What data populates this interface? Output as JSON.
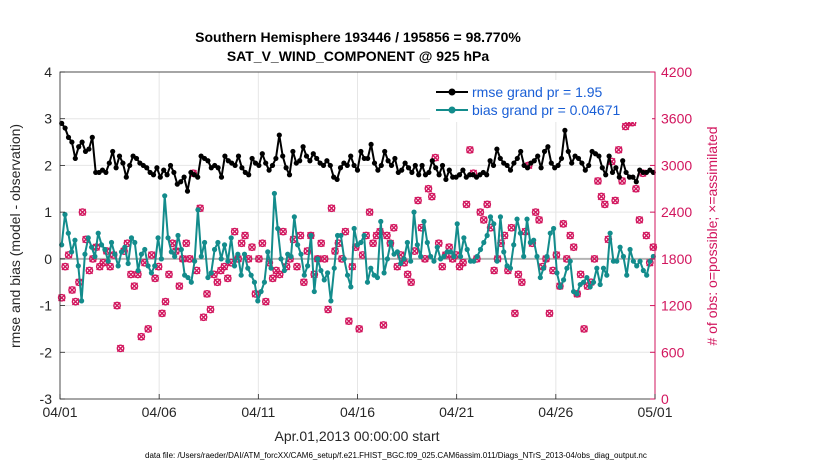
{
  "chart_data": {
    "type": "line",
    "title_line1": "Southern Hemisphere 193446 / 195856 = 98.770%",
    "title_line2": "SAT_V_WIND_COMPONENT @ 925 hPa",
    "ylabel": "rmse and bias (model - observation)",
    "ylabel_right": "# of obs: o=possible; ×=assimilated",
    "xlabel": "Apr.01,2013 00:00:00 start",
    "footer": "data file: /Users/raeder/DAI/ATM_forcXX/CAM6_setup/f.e21.FHIST_BGC.f09_025.CAM6assim.011/Diags_NTrS_2013-04/obs_diag_output.nc",
    "ylim": [
      -3,
      4
    ],
    "ylim_right": [
      0,
      4200
    ],
    "xlim": [
      0,
      30
    ],
    "x_ticks": [
      0,
      5,
      10,
      15,
      20,
      25,
      30
    ],
    "x_tick_labels": [
      "04/01",
      "04/06",
      "04/11",
      "04/16",
      "04/21",
      "04/26",
      "05/01"
    ],
    "y_ticks": [
      -3,
      -2,
      -1,
      0,
      1,
      2,
      3,
      4
    ],
    "y_tick_labels": [
      "-3",
      "-2",
      "-1",
      "0",
      "1",
      "2",
      "3",
      "4"
    ],
    "y_ticks_right": [
      0,
      600,
      1200,
      1800,
      2400,
      3000,
      3600,
      4200
    ],
    "y_tick_labels_right": [
      "0",
      "600",
      "1200",
      "1800",
      "2400",
      "3000",
      "3600",
      "4200"
    ],
    "legend": [
      {
        "label": "rmse grand pr = 1.95",
        "color": "#000000"
      },
      {
        "label": "bias grand pr = 0.04671",
        "color": "#138c8c"
      }
    ],
    "legend_position": "top-right",
    "colors": {
      "rmse": "#000000",
      "bias": "#138c8c",
      "obs": "#d2165e",
      "zero_line": "#b4b4b4",
      "axis_right": "#d2165e"
    },
    "series": [
      {
        "name": "rmse",
        "values": [
          2.9,
          2.8,
          2.6,
          2.5,
          2.15,
          2.4,
          2.5,
          2.3,
          2.35,
          2.6,
          1.85,
          1.85,
          1.9,
          1.85,
          2.05,
          2.3,
          1.95,
          2.2,
          2.05,
          1.75,
          2.0,
          2.2,
          2.15,
          2.05,
          2.0,
          1.95,
          1.85,
          1.8,
          1.95,
          1.75,
          1.9,
          1.8,
          2.0,
          1.85,
          1.6,
          1.65,
          1.75,
          1.45,
          1.85,
          1.8,
          1.75,
          2.2,
          2.15,
          2.1,
          1.95,
          2.0,
          1.95,
          1.75,
          2.2,
          2.1,
          2.05,
          2.0,
          2.2,
          1.95,
          1.85,
          1.8,
          2.15,
          2.05,
          2.0,
          2.25,
          2.05,
          1.9,
          2.0,
          2.15,
          2.65,
          2.2,
          1.95,
          1.8,
          2.3,
          2.05,
          2.1,
          2.4,
          2.2,
          2.1,
          2.25,
          2.15,
          2.05,
          2.0,
          2.1,
          2.0,
          1.75,
          1.7,
          1.95,
          2.05,
          2.0,
          2.2,
          2.0,
          1.9,
          2.3,
          2.15,
          2.15,
          2.45,
          2.05,
          1.9,
          2.0,
          2.3,
          2.1,
          2.0,
          2.15,
          1.85,
          1.9,
          2.05,
          1.95,
          1.85,
          2.0,
          1.8,
          2.0,
          1.8,
          1.85,
          2.1,
          1.95,
          1.8,
          2.0,
          1.7,
          1.9,
          1.75,
          1.75,
          1.8,
          1.9,
          1.75,
          1.8,
          1.8,
          1.75,
          1.8,
          1.85,
          1.8,
          2.1,
          2.0,
          2.35,
          2.15,
          2.05,
          2.0,
          1.9,
          2.05,
          2.15,
          2.3,
          2.0,
          1.95,
          2.05,
          2.1,
          2.2,
          1.95,
          2.3,
          2.4,
          2.05,
          1.95,
          2.0,
          2.15,
          2.75,
          2.3,
          2.05,
          2.2,
          2.15,
          2.05,
          1.9,
          2.0,
          2.3,
          2.25,
          2.2,
          1.95,
          1.8,
          2.2,
          1.85,
          1.95,
          1.75,
          2.1,
          1.85,
          1.75,
          1.75,
          1.65,
          1.9,
          1.85,
          1.85,
          1.9,
          1.85
        ]
      },
      {
        "name": "bias",
        "values": [
          0.3,
          0.95,
          0.55,
          0.15,
          0.4,
          -0.15,
          -0.9,
          0.1,
          0.45,
          0.25,
          0.05,
          0.55,
          0.3,
          0.2,
          -0.05,
          0.35,
          0.1,
          -0.15,
          0.15,
          0.25,
          -0.1,
          0.45,
          0.35,
          -0.25,
          0.1,
          0.2,
          -0.15,
          -0.3,
          -0.15,
          0.45,
          0.0,
          1.35,
          0.45,
          0.15,
          0.05,
          0.5,
          0.2,
          -0.35,
          -0.4,
          -0.5,
          -0.05,
          1.05,
          0.05,
          0.35,
          -0.4,
          -0.3,
          0.2,
          0.35,
          0.0,
          0.3,
          -0.05,
          0.45,
          -0.15,
          0.1,
          -0.35,
          0.1,
          -0.2,
          -0.35,
          -0.5,
          -0.9,
          -0.7,
          -0.5,
          0.15,
          -0.2,
          1.4,
          0.65,
          0.0,
          -0.25,
          0.1,
          0.05,
          0.9,
          0.3,
          0.1,
          -0.35,
          -0.15,
          0.5,
          -0.7,
          0.0,
          -0.25,
          -0.45,
          -0.3,
          -0.9,
          -0.2,
          0.5,
          0.5,
          0.0,
          -0.35,
          -0.6,
          0.65,
          0.3,
          0.35,
          0.5,
          -0.5,
          -0.2,
          -0.35,
          -0.4,
          0.8,
          -0.3,
          0.0,
          0.35,
          0.1,
          0.15,
          -0.1,
          0.0,
          0.35,
          -0.05,
          1.0,
          0.3,
          0.05,
          0.8,
          0.35,
          0.05,
          -0.05,
          0.25,
          0.0,
          0.05,
          0.15,
          0.15,
          0.05,
          0.75,
          0.05,
          0.45,
          0.2,
          -0.05,
          -0.05,
          0.05,
          0.2,
          0.35,
          0.5,
          0.9,
          0.75,
          -0.05,
          0.9,
          0.15,
          -0.15,
          -0.2,
          0.3,
          0.85,
          0.55,
          0.05,
          0.85,
          0.35,
          0.4,
          0.05,
          -0.4,
          -0.2,
          0.05,
          0.55,
          0.65,
          -0.3,
          -0.6,
          -0.45,
          -0.2,
          -0.05,
          -0.7,
          -0.75,
          -0.55,
          -0.5,
          -0.4,
          -0.6,
          -0.5,
          -0.2,
          -0.55,
          -0.2,
          -0.35,
          0.55,
          -0.05,
          -0.05,
          0.25,
          0.05,
          -0.35,
          0.2,
          -0.05,
          -0.15,
          -0.05,
          -0.25,
          -0.35,
          -0.05,
          0.05
        ]
      }
    ],
    "obs": {
      "possible": [
        1300,
        1700,
        1850,
        1400,
        1250,
        1500,
        2400,
        2050,
        1650,
        1800,
        1950,
        1700,
        1750,
        1900,
        1700,
        1850,
        1200,
        650,
        1900,
        2000,
        1600,
        1450,
        1600,
        800,
        1750,
        900,
        1850,
        1550,
        1700,
        1100,
        1250,
        1600,
        2000,
        1900,
        1450,
        1800,
        2000,
        1800,
        2900,
        1650,
        2450,
        1050,
        1350,
        1150,
        1600,
        1500,
        1650,
        1700,
        1550,
        1750,
        2150,
        1800,
        2000,
        2100,
        1800,
        1950,
        1350,
        1800,
        2000,
        1250,
        1750,
        1550,
        1650,
        1600,
        2150,
        1700,
        1800,
        2050,
        1700,
        2100,
        1500,
        1900,
        2100,
        1600,
        1800,
        2000,
        1800,
        1150,
        2450,
        1900,
        2000,
        1800,
        2150,
        1000,
        1700,
        1950,
        900,
        1850,
        2100,
        2400,
        2000,
        2100,
        2150,
        950,
        2100,
        2000,
        2200,
        1700,
        1850,
        1750,
        1600,
        1500,
        1900,
        2550,
        2200,
        1800,
        2700,
        2600,
        3100,
        2000,
        1700,
        1850,
        1950,
        1800,
        1850,
        1700,
        1750,
        2500,
        3200,
        2900,
        1800,
        2400,
        2300,
        2500,
        2200,
        1650,
        1800,
        2000,
        2100,
        1650,
        2200,
        1100,
        1600,
        1500,
        2150,
        3000,
        2000,
        2400,
        2300,
        1700,
        1800,
        1100,
        1650,
        1850,
        1450,
        2250,
        1800,
        2100,
        1950,
        1350,
        1600,
        900,
        1450,
        1500,
        1800,
        2800,
        2600,
        2500,
        2050,
        3050,
        2550,
        3200,
        2800,
        3500,
        3550,
        3550,
        2700,
        2300,
        2900,
        2100,
        1750,
        1950
      ]
    }
  }
}
